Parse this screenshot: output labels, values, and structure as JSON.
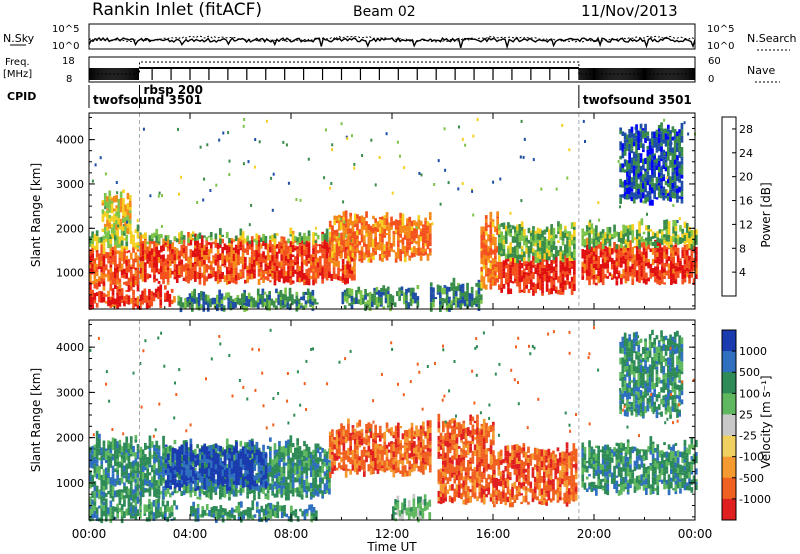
{
  "header": {
    "station": "Rankin Inlet (fitACF)",
    "beam": "Beam 02",
    "date": "11/Nov/2013"
  },
  "aux_panels": {
    "nsky": {
      "label": "N.Sky",
      "ticks": [
        "10^5",
        "10^0"
      ]
    },
    "nsearch": {
      "label": "N.Search",
      "ticks": [
        "10^5",
        "10^0"
      ]
    },
    "freq": {
      "label_1": "Freq.",
      "label_2": "[MHz]",
      "ticks": [
        "18",
        "8"
      ]
    },
    "nave": {
      "label": "Nave",
      "ticks": [
        "60",
        "0"
      ]
    },
    "cpid": {
      "label": "CPID",
      "segments": [
        {
          "name": "twofsound",
          "id": "3501",
          "start_hour": 0.0,
          "end_hour": 2.0
        },
        {
          "name": "rbsp",
          "id": "200",
          "start_hour": 2.0,
          "end_hour": 19.4
        },
        {
          "name": "twofsound",
          "id": "3501",
          "start_hour": 19.4,
          "end_hour": 24.0
        }
      ]
    }
  },
  "x_axis": {
    "label": "Time UT",
    "ticks": [
      "00:00",
      "04:00",
      "08:00",
      "12:00",
      "16:00",
      "20:00",
      "00:00"
    ]
  },
  "colors": {
    "power_scale": [
      "#0000ff",
      "#1f4ea6",
      "#3a8c4a",
      "#7dc44a",
      "#f5d020",
      "#f58a1a",
      "#f4511e",
      "#e01010"
    ],
    "velocity_scale": [
      "#1a3ab0",
      "#2f6fc0",
      "#2e8b57",
      "#5fb85f",
      "#c8c8c8",
      "#f0d060",
      "#f59a30",
      "#f06020",
      "#e02020"
    ]
  },
  "chart_data": [
    {
      "type": "heatmap",
      "panel": "power",
      "ylabel": "Slant Range [km]",
      "xlabel": "Time UT",
      "ylim": [
        180,
        4600
      ],
      "y_ticks": [
        1000,
        2000,
        3000,
        4000
      ],
      "x_range_hours": [
        0,
        24
      ],
      "colorbar": {
        "label": "Power [dB]",
        "ticks": [
          4,
          8,
          12,
          16,
          20,
          24,
          28
        ],
        "range": [
          0,
          30
        ]
      },
      "bands": [
        {
          "t_start": 0.0,
          "t_end": 3.4,
          "r_low": 250,
          "r_high": 520,
          "level": 26
        },
        {
          "t_start": 0.0,
          "t_end": 2.0,
          "r_low": 650,
          "r_high": 1500,
          "level": 24
        },
        {
          "t_start": 0.0,
          "t_end": 2.0,
          "r_low": 1500,
          "r_high": 1900,
          "level": 14
        },
        {
          "t_start": 0.5,
          "t_end": 1.6,
          "r_low": 1900,
          "r_high": 2700,
          "level": 16
        },
        {
          "t_start": 2.0,
          "t_end": 10.5,
          "r_low": 800,
          "r_high": 1700,
          "level": 25
        },
        {
          "t_start": 2.0,
          "t_end": 10.5,
          "r_low": 1700,
          "r_high": 1800,
          "level": 12
        },
        {
          "t_start": 3.5,
          "t_end": 9.0,
          "r_low": 200,
          "r_high": 450,
          "level": 9
        },
        {
          "t_start": 9.5,
          "t_end": 13.5,
          "r_low": 1300,
          "r_high": 2200,
          "level": 22
        },
        {
          "t_start": 10.0,
          "t_end": 13.0,
          "r_low": 220,
          "r_high": 550,
          "level": 10
        },
        {
          "t_start": 13.5,
          "t_end": 15.5,
          "r_low": 180,
          "r_high": 650,
          "level": 8
        },
        {
          "t_start": 15.5,
          "t_end": 16.2,
          "r_low": 700,
          "r_high": 2200,
          "level": 22
        },
        {
          "t_start": 16.2,
          "t_end": 19.2,
          "r_low": 550,
          "r_high": 1300,
          "level": 27
        },
        {
          "t_start": 16.2,
          "t_end": 19.2,
          "r_low": 1300,
          "r_high": 2000,
          "level": 12
        },
        {
          "t_start": 19.5,
          "t_end": 24.0,
          "r_low": 800,
          "r_high": 1600,
          "level": 26
        },
        {
          "t_start": 19.5,
          "t_end": 24.0,
          "r_low": 1600,
          "r_high": 2000,
          "level": 13
        },
        {
          "t_start": 21.0,
          "t_end": 23.5,
          "r_low": 2600,
          "r_high": 4200,
          "level": 6
        }
      ]
    },
    {
      "type": "heatmap",
      "panel": "velocity",
      "ylabel": "Slant Range [km]",
      "xlabel": "Time UT",
      "ylim": [
        180,
        4600
      ],
      "y_ticks": [
        1000,
        2000,
        3000,
        4000
      ],
      "x_range_hours": [
        0,
        24
      ],
      "colorbar": {
        "label": "Velocity [m s⁻¹]",
        "ticks": [
          1000,
          500,
          100,
          25,
          -25,
          -100,
          -500,
          -1000
        ]
      },
      "bands": [
        {
          "t_start": 0.0,
          "t_end": 2.0,
          "r_low": 600,
          "r_high": 1900,
          "level": 2
        },
        {
          "t_start": 0.0,
          "t_end": 3.5,
          "r_low": 200,
          "r_high": 550,
          "level": 2
        },
        {
          "t_start": 2.0,
          "t_end": 9.5,
          "r_low": 700,
          "r_high": 1800,
          "level": 2
        },
        {
          "t_start": 3.0,
          "t_end": 7.0,
          "r_low": 900,
          "r_high": 1700,
          "level": 0
        },
        {
          "t_start": 4.0,
          "t_end": 9.0,
          "r_low": 200,
          "r_high": 450,
          "level": 2
        },
        {
          "t_start": 9.5,
          "t_end": 13.5,
          "r_low": 1200,
          "r_high": 2200,
          "level": 7
        },
        {
          "t_start": 12.0,
          "t_end": 13.5,
          "r_low": 200,
          "r_high": 550,
          "level": 3
        },
        {
          "t_start": 13.8,
          "t_end": 16.0,
          "r_low": 600,
          "r_high": 2300,
          "level": 7
        },
        {
          "t_start": 16.0,
          "t_end": 19.3,
          "r_low": 550,
          "r_high": 1700,
          "level": 7
        },
        {
          "t_start": 19.5,
          "t_end": 24.0,
          "r_low": 800,
          "r_high": 1800,
          "level": 2
        },
        {
          "t_start": 21.0,
          "t_end": 23.5,
          "r_low": 2500,
          "r_high": 4200,
          "level": 2
        }
      ]
    }
  ]
}
